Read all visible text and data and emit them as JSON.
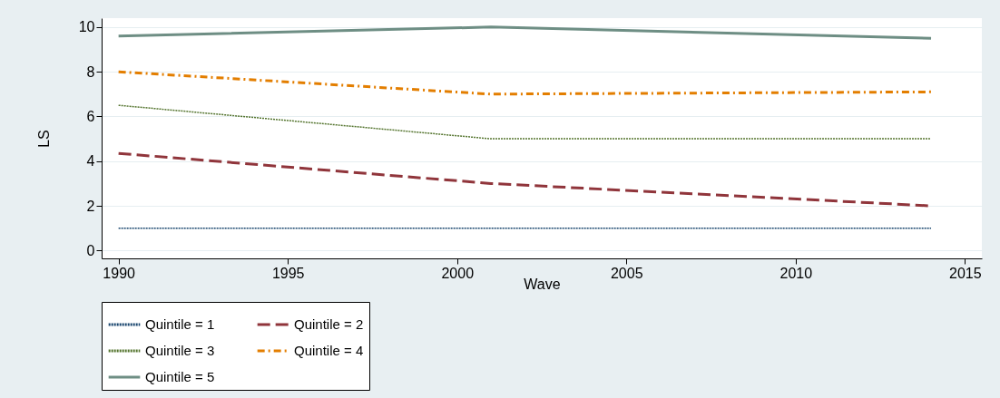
{
  "chart_data": {
    "type": "line",
    "xlabel": "Wave",
    "ylabel": "LS",
    "x": [
      1990,
      2001,
      2014
    ],
    "series": [
      {
        "name": "Quintile = 1",
        "color": "#1a476f",
        "values": [
          1,
          1,
          1
        ],
        "line_style": "dotted"
      },
      {
        "name": "Quintile = 2",
        "color": "#90353b",
        "values": [
          4.35,
          3,
          2
        ],
        "line_style": "dashed"
      },
      {
        "name": "Quintile = 3",
        "color": "#55752f",
        "values": [
          6.5,
          5,
          5
        ],
        "line_style": "dotted"
      },
      {
        "name": "Quintile = 4",
        "color": "#e37e00",
        "values": [
          8,
          7,
          7.1
        ],
        "line_style": "dashdot"
      },
      {
        "name": "Quintile = 5",
        "color": "#6e8e84",
        "values": [
          9.6,
          10,
          9.5
        ],
        "line_style": "solid"
      }
    ],
    "xlim": [
      1989.5,
      2015.5
    ],
    "xticks": [
      1990,
      1995,
      2000,
      2005,
      2010,
      2015
    ],
    "ylim": [
      -0.35,
      10.4
    ],
    "yticks": [
      0,
      2,
      4,
      6,
      8,
      10
    ],
    "grid": "y",
    "legend": "bottom"
  }
}
